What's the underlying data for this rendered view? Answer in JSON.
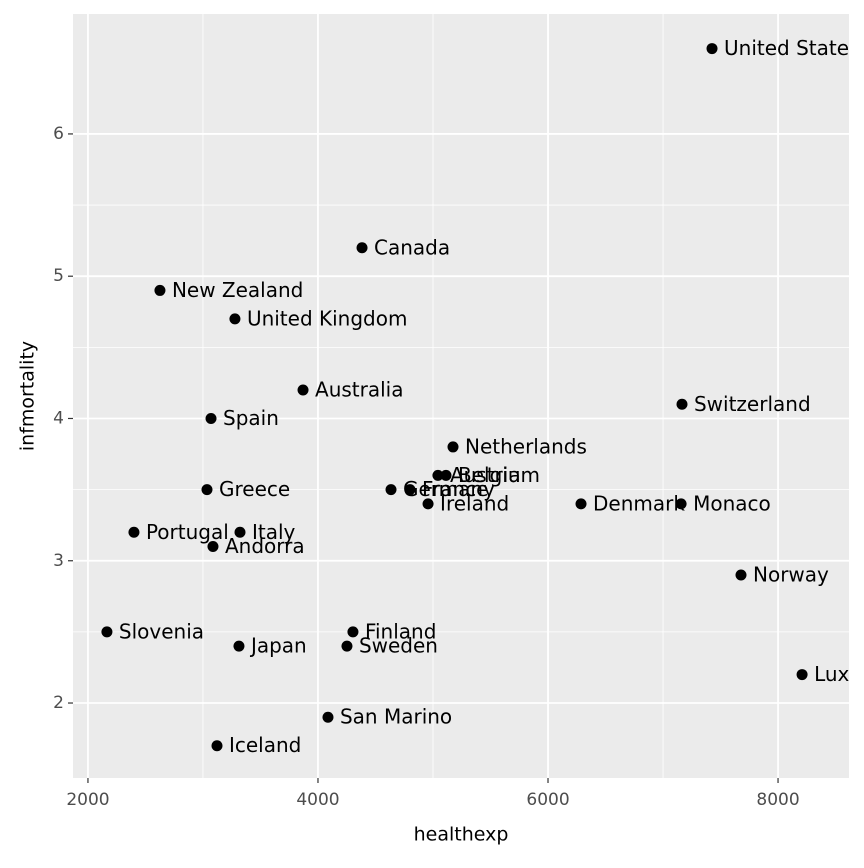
{
  "chart_data": {
    "type": "scatter",
    "x_label": "healthexp",
    "y_label": "infmortality",
    "labels": [
      "United States",
      "Canada",
      "New Zealand",
      "United Kingdom",
      "Australia",
      "Spain",
      "Switzerland",
      "Netherlands",
      "Austria",
      "Belgium",
      "Greece",
      "Germany",
      "France",
      "Ireland",
      "Denmark",
      "Monaco",
      "Portugal",
      "Italy",
      "Andorra",
      "Norway",
      "Slovenia",
      "Finland",
      "Japan",
      "Sweden",
      "Luxembourg",
      "San Marino",
      "Iceland"
    ],
    "x": [
      7426,
      4383,
      2626,
      3278,
      3870,
      3070,
      7165,
      5174,
      5043,
      5113,
      3035,
      4635,
      4800,
      4957,
      6287,
      7157,
      2400,
      3322,
      3087,
      7678,
      2165,
      4304,
      3313,
      4252,
      8209,
      4087,
      3122
    ],
    "values": [
      6.6,
      5.2,
      4.9,
      4.7,
      4.2,
      4.0,
      4.1,
      3.8,
      3.6,
      3.6,
      3.5,
      3.5,
      3.5,
      3.4,
      3.4,
      3.4,
      3.2,
      3.2,
      3.1,
      2.9,
      2.5,
      2.5,
      2.4,
      2.4,
      2.2,
      1.9,
      1.7
    ],
    "color": "#000000",
    "xlim": [
      1870,
      8617
    ],
    "ylim": [
      1.473,
      6.843
    ],
    "xticks": [
      2000,
      4000,
      6000,
      8000
    ],
    "yticks": [
      2,
      3,
      4,
      5,
      6
    ],
    "grid": true
  }
}
